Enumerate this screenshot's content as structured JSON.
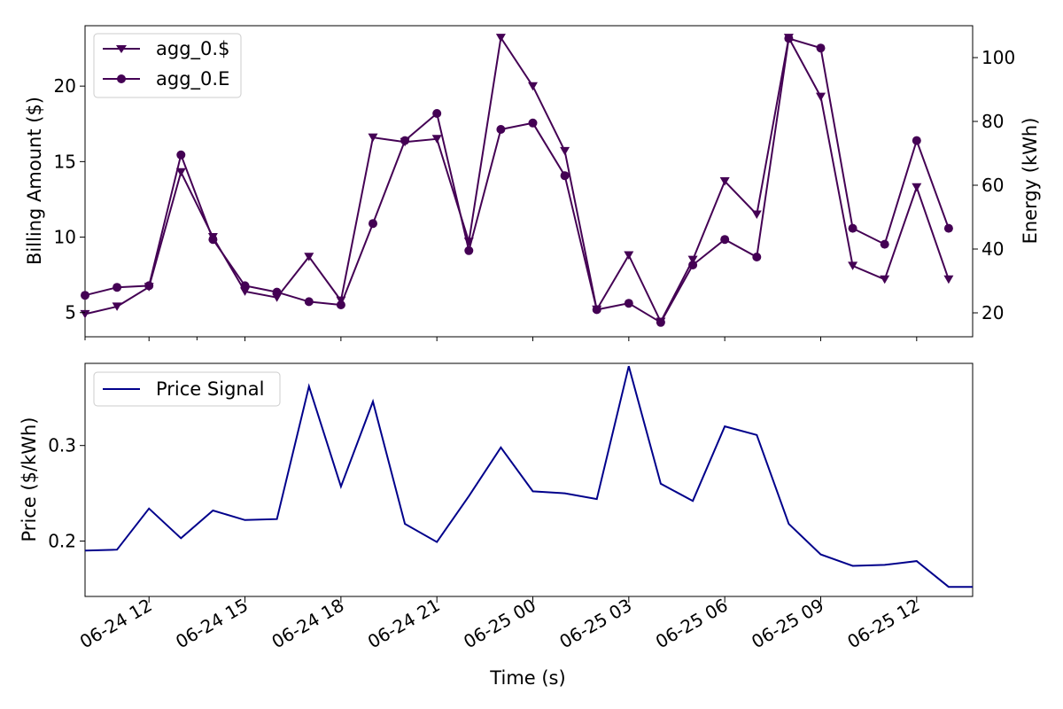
{
  "chart_data": [
    {
      "type": "line",
      "ylabel": "Billing Amount ($)",
      "y2label": "Energy (kWh)",
      "ylim": [
        3.4,
        24
      ],
      "y2lim": [
        12.5,
        110
      ],
      "xlim": [
        "2024-06-24 10:00",
        "2024-06-25 13:45"
      ],
      "yticks": [
        5,
        10,
        15,
        20
      ],
      "y2ticks": [
        20,
        40,
        60,
        80,
        100
      ],
      "legend_position": "upper-left",
      "x": [
        "2024-06-24 10:00",
        "2024-06-24 11:00",
        "2024-06-24 12:00",
        "2024-06-24 13:00",
        "2024-06-24 14:00",
        "2024-06-24 15:00",
        "2024-06-24 16:00",
        "2024-06-24 17:00",
        "2024-06-24 18:00",
        "2024-06-24 19:00",
        "2024-06-24 20:00",
        "2024-06-24 21:00",
        "2024-06-24 22:00",
        "2024-06-24 23:00",
        "2024-06-25 00:00",
        "2024-06-25 01:00",
        "2024-06-25 02:00",
        "2024-06-25 03:00",
        "2024-06-25 04:00",
        "2024-06-25 05:00",
        "2024-06-25 06:00",
        "2024-06-25 07:00",
        "2024-06-25 08:00",
        "2024-06-25 09:00",
        "2024-06-25 10:00",
        "2024-06-25 11:00",
        "2024-06-25 12:00",
        "2024-06-25 13:00"
      ],
      "series": [
        {
          "name": "agg_0.$",
          "axis": "left",
          "marker": "triangle-down",
          "color": "#440154",
          "values": [
            4.9,
            5.4,
            6.7,
            14.3,
            10.0,
            6.4,
            6.0,
            8.7,
            5.8,
            16.6,
            16.3,
            16.5,
            9.7,
            23.2,
            20.0,
            15.7,
            5.2,
            8.8,
            4.4,
            8.5,
            13.7,
            11.5,
            23.2,
            19.3,
            8.1,
            7.2,
            13.3,
            7.2
          ]
        },
        {
          "name": "agg_0.E",
          "axis": "right",
          "marker": "circle",
          "color": "#440154",
          "values": [
            25.5,
            28.0,
            28.5,
            69.5,
            43.0,
            28.5,
            26.5,
            23.5,
            22.5,
            48.0,
            74.0,
            82.5,
            39.5,
            77.5,
            79.5,
            63.0,
            21.0,
            23.0,
            17.0,
            35.0,
            43.0,
            37.5,
            106.0,
            103.0,
            46.5,
            41.5,
            74.0,
            46.5
          ]
        }
      ]
    },
    {
      "type": "line",
      "xlabel": "Time (s)",
      "ylabel": "Price ($/kWh)",
      "ylim": [
        0.142,
        0.386
      ],
      "yticks": [
        0.2,
        0.3
      ],
      "legend_position": "upper-left",
      "x": [
        "2024-06-24 10:00",
        "2024-06-24 11:00",
        "2024-06-24 12:00",
        "2024-06-24 13:00",
        "2024-06-24 14:00",
        "2024-06-24 15:00",
        "2024-06-24 16:00",
        "2024-06-24 17:00",
        "2024-06-24 18:00",
        "2024-06-24 19:00",
        "2024-06-24 20:00",
        "2024-06-24 21:00",
        "2024-06-24 22:00",
        "2024-06-24 23:00",
        "2024-06-25 00:00",
        "2024-06-25 01:00",
        "2024-06-25 02:00",
        "2024-06-25 03:00",
        "2024-06-25 04:00",
        "2024-06-25 05:00",
        "2024-06-25 06:00",
        "2024-06-25 07:00",
        "2024-06-25 08:00",
        "2024-06-25 09:00",
        "2024-06-25 10:00",
        "2024-06-25 11:00",
        "2024-06-25 12:00",
        "2024-06-25 13:00",
        "2024-06-25 13:45"
      ],
      "series": [
        {
          "name": "Price Signal",
          "color": "#00008b",
          "values": [
            0.19,
            0.191,
            0.234,
            0.203,
            0.232,
            0.222,
            0.223,
            0.362,
            0.257,
            0.346,
            0.218,
            0.199,
            0.247,
            0.298,
            0.252,
            0.25,
            0.244,
            0.383,
            0.26,
            0.242,
            0.32,
            0.311,
            0.218,
            0.186,
            0.174,
            0.175,
            0.179,
            0.152,
            0.152
          ]
        }
      ],
      "xticks": [
        "06-24 12",
        "06-24 15",
        "06-24 18",
        "06-24 21",
        "06-25 00",
        "06-25 03",
        "06-25 06",
        "06-25 09",
        "06-25 12"
      ]
    }
  ]
}
